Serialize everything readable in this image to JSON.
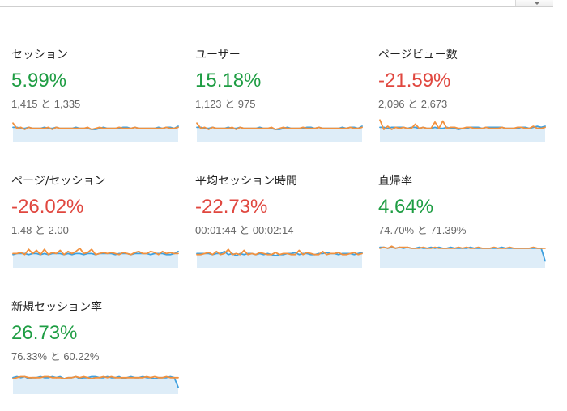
{
  "colors": {
    "positive": "#1e9d43",
    "negative": "#e0473f",
    "current_series": "#3ea0df",
    "previous_series": "#f1913f",
    "sparkline_fill": "#dcecf8",
    "divider": "#e4e4e4"
  },
  "header": {
    "dropdown_icon": "chevron-down-icon"
  },
  "metrics": [
    {
      "title": "セッション",
      "delta": "5.99%",
      "trend": "positive",
      "compare": "1,415 と 1,335",
      "current": [
        12,
        12,
        11,
        11,
        12,
        11,
        11,
        11,
        12,
        11,
        11,
        12,
        11,
        11,
        11,
        11,
        12,
        11,
        11,
        11,
        10,
        10,
        11,
        12,
        11,
        11,
        11,
        11,
        12,
        12,
        11,
        12,
        11,
        11,
        11,
        11,
        11,
        12,
        11,
        12,
        12,
        11,
        13
      ],
      "previous": [
        16,
        11,
        12,
        10,
        12,
        11,
        11,
        11,
        11,
        12,
        10,
        12,
        11,
        11,
        11,
        11,
        11,
        11,
        11,
        12,
        10,
        11,
        12,
        11,
        11,
        11,
        11,
        12,
        11,
        11,
        11,
        12,
        11,
        11,
        11,
        11,
        11,
        11,
        11,
        12,
        11,
        11,
        12
      ]
    },
    {
      "title": "ユーザー",
      "delta": "15.18%",
      "trend": "positive",
      "compare": "1,123 と 975",
      "current": [
        12,
        12,
        11,
        11,
        12,
        11,
        11,
        11,
        12,
        11,
        11,
        12,
        11,
        11,
        11,
        11,
        12,
        11,
        11,
        11,
        10,
        10,
        11,
        12,
        11,
        11,
        11,
        11,
        12,
        12,
        11,
        12,
        11,
        11,
        11,
        11,
        11,
        12,
        11,
        12,
        12,
        11,
        13
      ],
      "previous": [
        16,
        11,
        12,
        10,
        12,
        11,
        11,
        11,
        11,
        12,
        10,
        12,
        11,
        11,
        11,
        11,
        11,
        11,
        11,
        12,
        10,
        11,
        12,
        11,
        11,
        11,
        11,
        12,
        11,
        11,
        11,
        12,
        11,
        11,
        11,
        11,
        11,
        11,
        11,
        12,
        11,
        11,
        12
      ]
    },
    {
      "title": "ページビュー数",
      "delta": "-21.59%",
      "trend": "negative",
      "compare": "2,096 と 2,673",
      "current": [
        12,
        12,
        11,
        12,
        12,
        12,
        12,
        11,
        12,
        12,
        11,
        12,
        11,
        11,
        12,
        11,
        11,
        12,
        11,
        11,
        10,
        11,
        11,
        12,
        12,
        12,
        11,
        12,
        12,
        12,
        12,
        12,
        11,
        11,
        11,
        11,
        12,
        12,
        11,
        12,
        13,
        12,
        13
      ],
      "previous": [
        19,
        10,
        13,
        10,
        12,
        11,
        12,
        11,
        11,
        15,
        11,
        12,
        11,
        11,
        17,
        11,
        18,
        11,
        12,
        12,
        11,
        11,
        12,
        12,
        11,
        11,
        11,
        12,
        11,
        11,
        11,
        12,
        11,
        11,
        11,
        12,
        12,
        11,
        11,
        13,
        11,
        11,
        12
      ]
    },
    {
      "title": "ページ/セッション",
      "delta": "-26.02%",
      "trend": "negative",
      "compare": "1.48 と 2.00",
      "current": [
        11,
        12,
        12,
        12,
        11,
        12,
        12,
        11,
        12,
        11,
        12,
        12,
        12,
        11,
        12,
        11,
        12,
        12,
        11,
        12,
        12,
        11,
        12,
        12,
        12,
        12,
        11,
        12,
        12,
        12,
        11,
        12,
        12,
        12,
        12,
        11,
        12,
        12,
        12,
        11,
        11,
        12,
        14
      ],
      "previous": [
        12,
        12,
        13,
        11,
        16,
        12,
        15,
        11,
        16,
        11,
        13,
        12,
        15,
        11,
        14,
        12,
        14,
        17,
        12,
        13,
        16,
        11,
        12,
        13,
        12,
        13,
        12,
        11,
        13,
        12,
        11,
        13,
        14,
        12,
        12,
        14,
        13,
        11,
        14,
        12,
        13,
        12,
        12
      ]
    },
    {
      "title": "平均セッション時間",
      "delta": "-22.73%",
      "trend": "negative",
      "compare": "00:01:44 と 00:02:14",
      "current": [
        12,
        12,
        12,
        12,
        11,
        12,
        12,
        14,
        11,
        12,
        10,
        12,
        11,
        12,
        12,
        11,
        12,
        11,
        12,
        11,
        10,
        11,
        11,
        12,
        12,
        13,
        11,
        12,
        12,
        11,
        11,
        12,
        12,
        13,
        12,
        12,
        11,
        12,
        12,
        12,
        11,
        12,
        13
      ],
      "previous": [
        11,
        11,
        12,
        13,
        11,
        14,
        11,
        12,
        16,
        11,
        12,
        11,
        15,
        11,
        12,
        11,
        13,
        12,
        11,
        11,
        13,
        11,
        12,
        12,
        11,
        11,
        15,
        11,
        13,
        12,
        11,
        11,
        14,
        11,
        12,
        12,
        13,
        11,
        11,
        12,
        13,
        11,
        12
      ]
    },
    {
      "title": "直帰率",
      "delta": "4.64%",
      "trend": "positive",
      "compare": "74.70% と 71.39%",
      "current": [
        18,
        18,
        17,
        18,
        17,
        18,
        17,
        18,
        17,
        17,
        18,
        17,
        17,
        18,
        17,
        18,
        17,
        17,
        18,
        17,
        17,
        17,
        17,
        18,
        17,
        17,
        17,
        17,
        17,
        17,
        17,
        18,
        17,
        17,
        17,
        17,
        17,
        17,
        17,
        17,
        17,
        17,
        5
      ],
      "previous": [
        17,
        18,
        17,
        19,
        17,
        18,
        18,
        18,
        17,
        17,
        17,
        18,
        17,
        17,
        18,
        17,
        17,
        17,
        17,
        17,
        18,
        17,
        18,
        17,
        17,
        18,
        17,
        17,
        17,
        18,
        17,
        17,
        17,
        18,
        17,
        17,
        17,
        17,
        17,
        18,
        17,
        17,
        17
      ]
    },
    {
      "title": "新規セッション率",
      "delta": "26.73%",
      "trend": "positive",
      "compare": "76.33% と 60.22%",
      "current": [
        14,
        15,
        14,
        15,
        13,
        14,
        14,
        15,
        14,
        14,
        15,
        14,
        15,
        13,
        14,
        14,
        15,
        13,
        14,
        14,
        15,
        15,
        14,
        14,
        15,
        14,
        14,
        15,
        13,
        14,
        15,
        14,
        14,
        15,
        14,
        14,
        13,
        14,
        14,
        14,
        15,
        14,
        5
      ],
      "previous": [
        13,
        14,
        15,
        15,
        14,
        14,
        14,
        14,
        15,
        15,
        14,
        14,
        14,
        13,
        14,
        14,
        15,
        14,
        15,
        14,
        13,
        14,
        14,
        15,
        14,
        15,
        14,
        14,
        14,
        14,
        14,
        14,
        14,
        14,
        15,
        14,
        15,
        14,
        14,
        15,
        14,
        14,
        14
      ]
    }
  ]
}
